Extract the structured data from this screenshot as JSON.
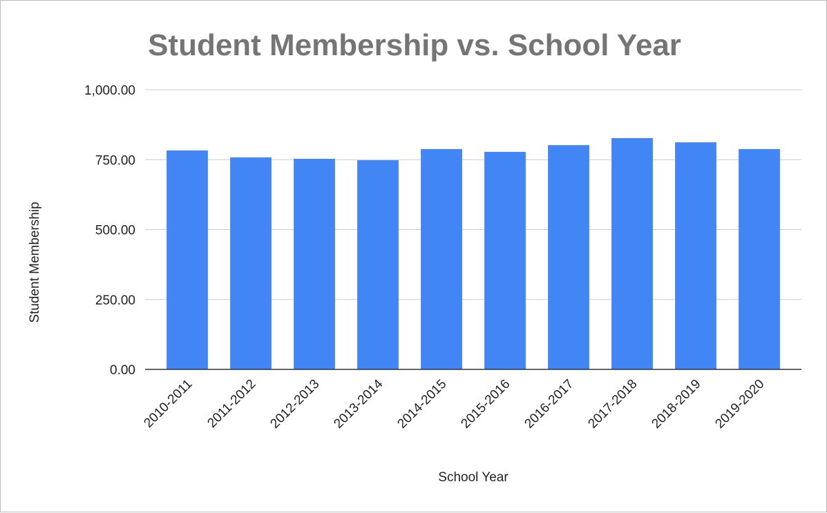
{
  "chart_data": {
    "type": "bar",
    "title": "Student Membership vs. School Year",
    "x_label": "School Year",
    "y_label": "Student Membership",
    "categories": [
      "2010-2011",
      "2011-2012",
      "2012-2013",
      "2013-2014",
      "2014-2015",
      "2015-2016",
      "2016-2017",
      "2017-2018",
      "2018-2019",
      "2019-2020"
    ],
    "values": [
      783,
      758,
      753,
      748,
      788,
      778,
      802,
      827,
      812,
      788
    ],
    "color": "#4285f4",
    "ylim": [
      0,
      1000
    ],
    "yticks": [
      {
        "value": 0,
        "label": "0.00"
      },
      {
        "value": 250,
        "label": "250.00"
      },
      {
        "value": 500,
        "label": "500.00"
      },
      {
        "value": 750,
        "label": "750.00"
      },
      {
        "value": 1000,
        "label": "1,000.00"
      }
    ],
    "grid": true
  }
}
